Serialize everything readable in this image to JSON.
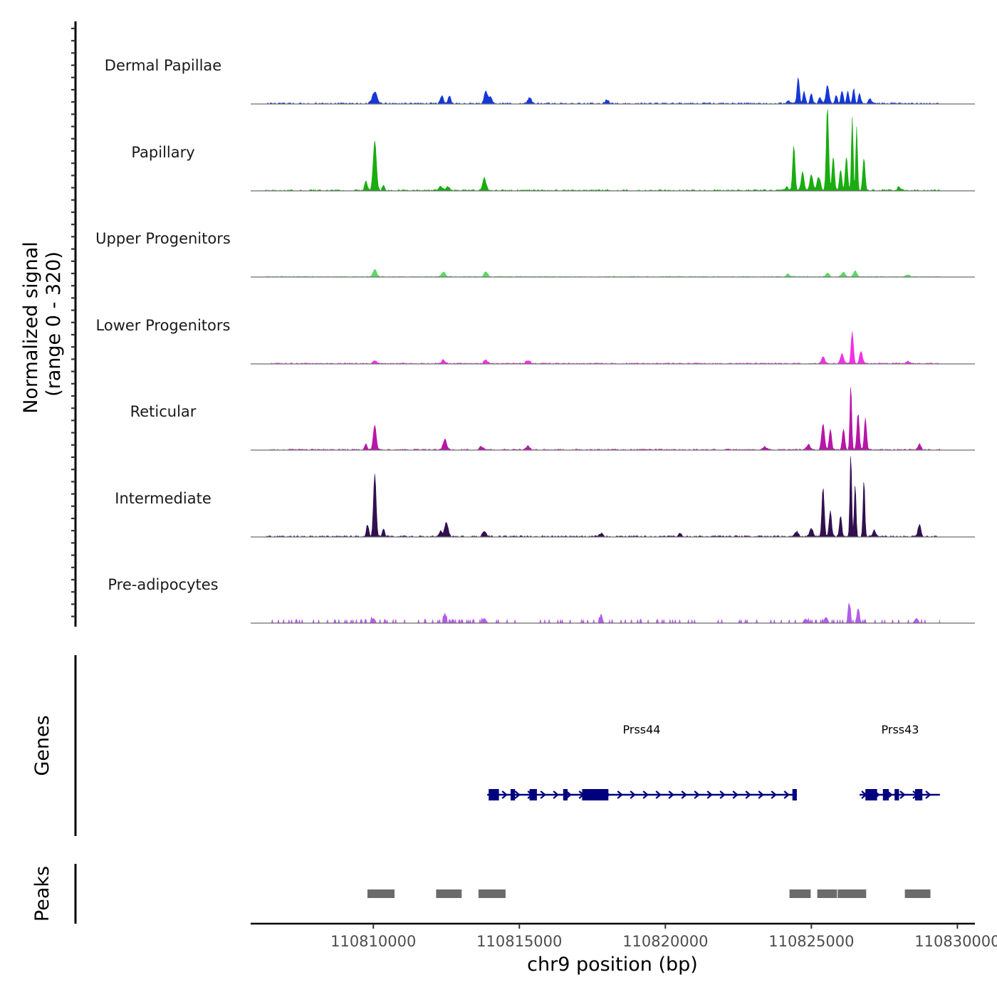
{
  "chart_data": {
    "type": "area",
    "title": "",
    "xlabel": "chr9 position (bp)",
    "ylabel": "Normalized signal\n(range 0 - 320)",
    "ylabel_lines": [
      "Normalized signal",
      "(range 0 - 320)"
    ],
    "ylim": [
      0,
      320
    ],
    "xlim": [
      110805800,
      110830600
    ],
    "xticks": [
      110810000,
      110815000,
      110820000,
      110825000,
      110830000
    ],
    "xtick_labels": [
      "110810000",
      "110815000",
      "110820000",
      "110825000",
      "110830000"
    ],
    "colors": {
      "dermal_papillae": "#1538d6",
      "papillary": "#19ad0f",
      "upper_progenitors": "#5cd867",
      "lower_progenitors": "#f230e6",
      "reticular": "#b617a7",
      "intermediate": "#32104f",
      "pre_adipocytes": "#b35ce8",
      "gene": "#00007f",
      "peak": "#6b6b6b"
    },
    "series": [
      {
        "name": "Dermal Papillae",
        "color_key": "dermal_papillae",
        "peaks": [
          [
            110810050,
            80,
            45
          ],
          [
            110812350,
            50,
            30
          ],
          [
            110812600,
            45,
            30
          ],
          [
            110813850,
            55,
            45
          ],
          [
            110814000,
            60,
            25
          ],
          [
            110815350,
            60,
            22
          ],
          [
            110818000,
            60,
            14
          ],
          [
            110824200,
            50,
            12
          ],
          [
            110824550,
            40,
            100
          ],
          [
            110824750,
            40,
            45
          ],
          [
            110825000,
            40,
            40
          ],
          [
            110825300,
            50,
            22
          ],
          [
            110825550,
            50,
            70
          ],
          [
            110825850,
            40,
            32
          ],
          [
            110826050,
            40,
            50
          ],
          [
            110826250,
            40,
            45
          ],
          [
            110826450,
            35,
            60
          ],
          [
            110826650,
            40,
            38
          ],
          [
            110827000,
            50,
            20
          ]
        ],
        "noise": 5,
        "seed": 1
      },
      {
        "name": "Papillary",
        "color_key": "papillary",
        "peaks": [
          [
            110810050,
            55,
            190
          ],
          [
            110809750,
            45,
            35
          ],
          [
            110810350,
            40,
            22
          ],
          [
            110812300,
            60,
            18
          ],
          [
            110812550,
            50,
            14
          ],
          [
            110813800,
            60,
            48
          ],
          [
            110824150,
            60,
            12
          ],
          [
            110824400,
            40,
            170
          ],
          [
            110824700,
            50,
            70
          ],
          [
            110825000,
            50,
            60
          ],
          [
            110825250,
            60,
            50
          ],
          [
            110825550,
            40,
            320
          ],
          [
            110825750,
            40,
            130
          ],
          [
            110826000,
            40,
            80
          ],
          [
            110826200,
            40,
            130
          ],
          [
            110826400,
            30,
            280
          ],
          [
            110826550,
            30,
            240
          ],
          [
            110826800,
            40,
            120
          ],
          [
            110828000,
            50,
            14
          ]
        ],
        "noise": 5,
        "seed": 2
      },
      {
        "name": "Upper Progenitors",
        "color_key": "upper_progenitors",
        "peaks": [
          [
            110810050,
            60,
            28
          ],
          [
            110812400,
            70,
            18
          ],
          [
            110813850,
            60,
            20
          ],
          [
            110824200,
            60,
            10
          ],
          [
            110825550,
            60,
            14
          ],
          [
            110826100,
            60,
            18
          ],
          [
            110826500,
            60,
            22
          ],
          [
            110828300,
            60,
            8
          ]
        ],
        "noise": 3,
        "seed": 3
      },
      {
        "name": "Lower Progenitors",
        "color_key": "lower_progenitors",
        "peaks": [
          [
            110810050,
            60,
            12
          ],
          [
            110812400,
            60,
            14
          ],
          [
            110813850,
            60,
            14
          ],
          [
            110815300,
            70,
            12
          ],
          [
            110825400,
            60,
            25
          ],
          [
            110826050,
            50,
            40
          ],
          [
            110826400,
            40,
            120
          ],
          [
            110826700,
            50,
            45
          ],
          [
            110828300,
            60,
            8
          ]
        ],
        "noise": 4,
        "seed": 4
      },
      {
        "name": "Reticular",
        "color_key": "reticular",
        "peaks": [
          [
            110810050,
            50,
            95
          ],
          [
            110809750,
            40,
            22
          ],
          [
            110812450,
            60,
            40
          ],
          [
            110813700,
            60,
            12
          ],
          [
            110815300,
            60,
            14
          ],
          [
            110823400,
            60,
            12
          ],
          [
            110824900,
            60,
            20
          ],
          [
            110825400,
            50,
            100
          ],
          [
            110825650,
            40,
            80
          ],
          [
            110826100,
            40,
            80
          ],
          [
            110826350,
            30,
            250
          ],
          [
            110826600,
            40,
            140
          ],
          [
            110826850,
            40,
            120
          ],
          [
            110828700,
            50,
            22
          ]
        ],
        "noise": 4,
        "seed": 5
      },
      {
        "name": "Intermediate",
        "color_key": "intermediate",
        "peaks": [
          [
            110810050,
            45,
            240
          ],
          [
            110809800,
            40,
            45
          ],
          [
            110810350,
            35,
            30
          ],
          [
            110812500,
            60,
            55
          ],
          [
            110812300,
            50,
            20
          ],
          [
            110813800,
            60,
            18
          ],
          [
            110817800,
            60,
            12
          ],
          [
            110820500,
            60,
            10
          ],
          [
            110824500,
            60,
            18
          ],
          [
            110825000,
            60,
            30
          ],
          [
            110825400,
            40,
            190
          ],
          [
            110825650,
            40,
            100
          ],
          [
            110826000,
            40,
            80
          ],
          [
            110826350,
            30,
            320
          ],
          [
            110826500,
            30,
            200
          ],
          [
            110826800,
            30,
            220
          ],
          [
            110827150,
            50,
            25
          ],
          [
            110828700,
            50,
            45
          ]
        ],
        "noise": 5,
        "seed": 6
      },
      {
        "name": "Pre-adipocytes",
        "color_key": "pre_adipocytes",
        "peaks": [
          [
            110810000,
            60,
            18
          ],
          [
            110812450,
            40,
            38
          ],
          [
            110813800,
            60,
            18
          ],
          [
            110817800,
            40,
            35
          ],
          [
            110824800,
            60,
            16
          ],
          [
            110825500,
            60,
            22
          ],
          [
            110826300,
            40,
            70
          ],
          [
            110826600,
            50,
            40
          ],
          [
            110828600,
            60,
            18
          ]
        ],
        "noise": 6,
        "seed": 7,
        "sparse": true
      }
    ],
    "genes": [
      {
        "name": "Prss44",
        "start": 110813900,
        "end": 110824500,
        "strand": "+",
        "exons": [
          [
            110813950,
            110814300
          ],
          [
            110814700,
            110814850
          ],
          [
            110815350,
            110815600
          ],
          [
            110816500,
            110816650
          ],
          [
            110817150,
            110818050
          ],
          [
            110824350,
            110824500
          ]
        ]
      },
      {
        "name": "Prss43",
        "start": 110826650,
        "end": 110829400,
        "strand": "+",
        "exons": [
          [
            110826850,
            110827250
          ],
          [
            110827450,
            110827650
          ],
          [
            110827850,
            110828000
          ],
          [
            110828550,
            110828800
          ]
        ]
      }
    ],
    "peaks_track": [
      [
        110809800,
        110810750
      ],
      [
        110812150,
        110813050
      ],
      [
        110813600,
        110814550
      ],
      [
        110824250,
        110825000
      ],
      [
        110825200,
        110825900
      ],
      [
        110825900,
        110826900
      ],
      [
        110828200,
        110829100
      ]
    ],
    "track_labels": {
      "genes": "Genes",
      "peaks": "Peaks"
    }
  }
}
